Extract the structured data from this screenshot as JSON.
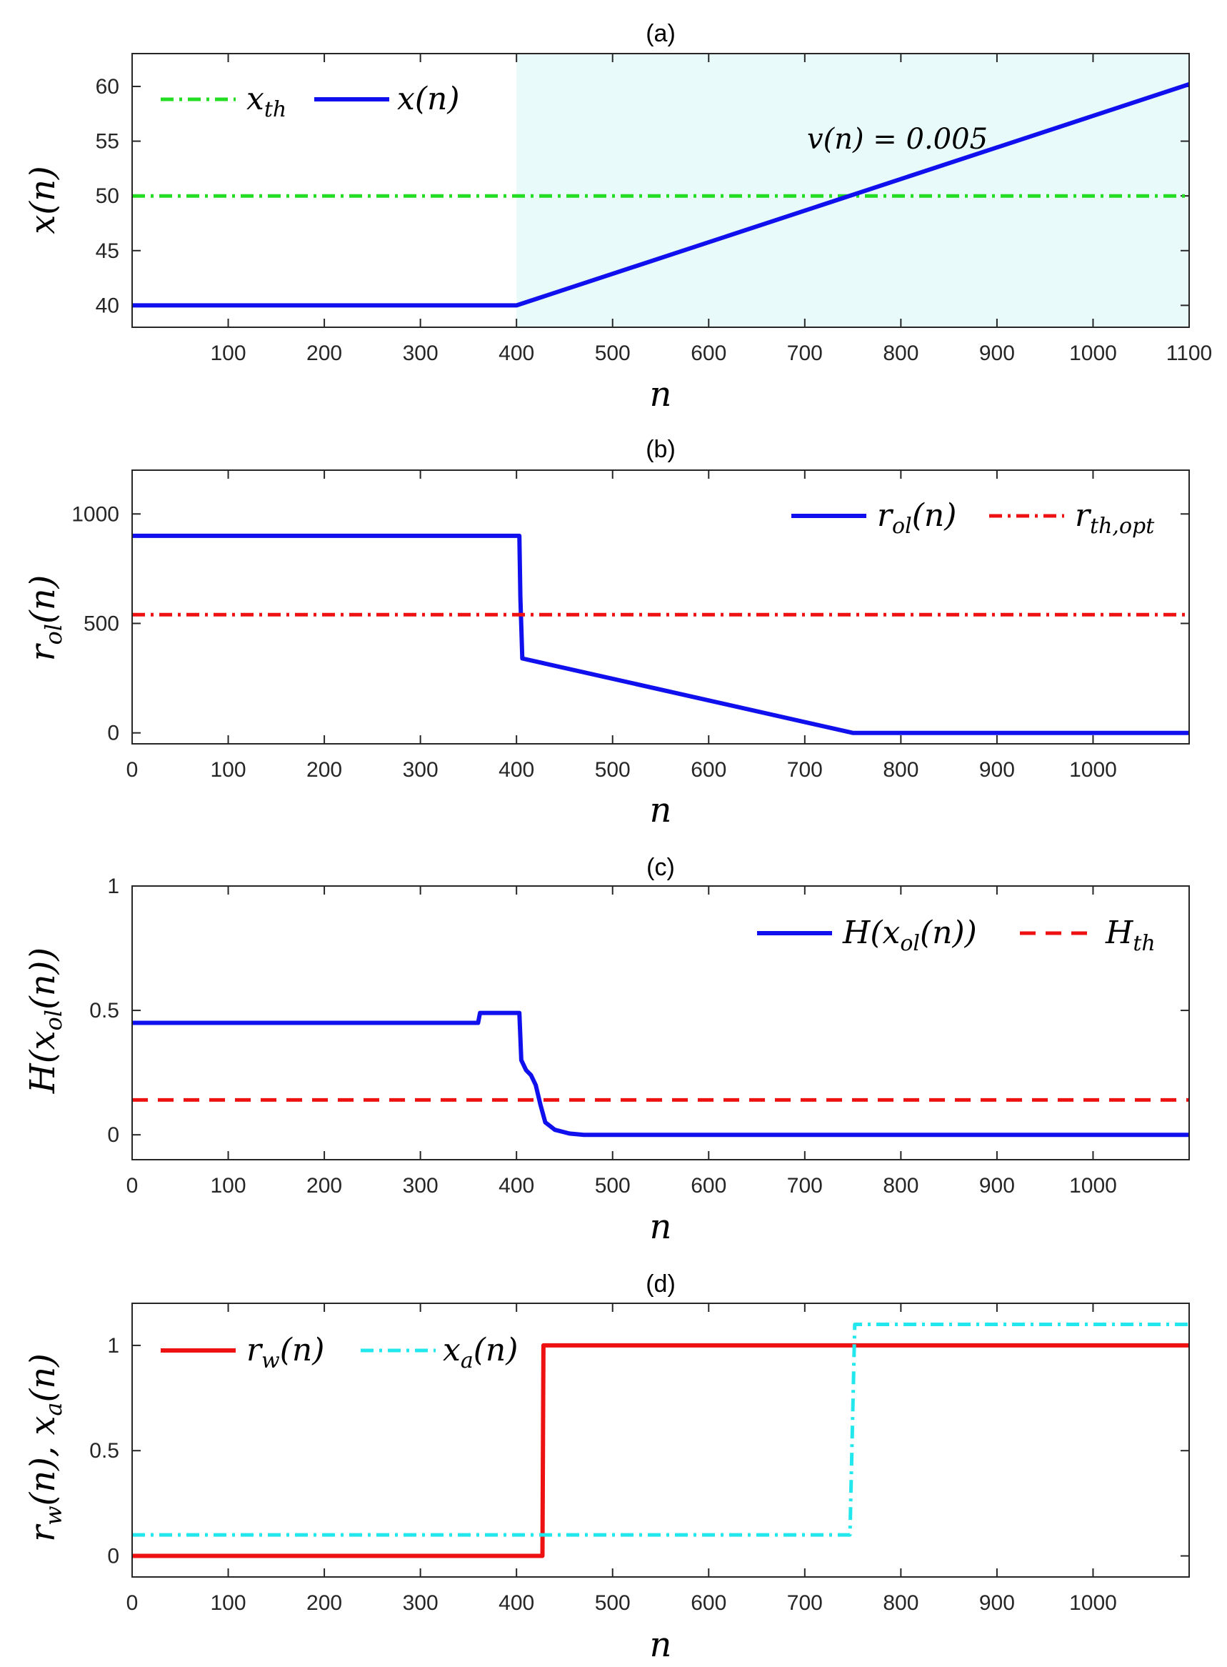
{
  "chart_data": [
    {
      "type": "line",
      "title": "(a)",
      "xlabel": "n",
      "ylabel": "x(n)",
      "xlim": [
        0,
        1100
      ],
      "ylim": [
        38,
        63
      ],
      "xticks": [
        100,
        200,
        300,
        400,
        500,
        600,
        700,
        800,
        900,
        1000,
        1100
      ],
      "yticks": [
        40,
        45,
        50,
        55,
        60
      ],
      "shaded_region": {
        "x_from": 400,
        "x_to": 1100,
        "color": "#e8fafa"
      },
      "annotation": {
        "text": "v(n) = 0.005",
        "x": 700,
        "y": 55.2
      },
      "legend_position": "top-left",
      "series": [
        {
          "name": "x_th",
          "color": "#22dd22",
          "style": "dashdot",
          "x": [
            0,
            1100
          ],
          "y": [
            50,
            50
          ]
        },
        {
          "name": "x(n)",
          "color": "#1010ee",
          "style": "solid",
          "x": [
            0,
            400,
            1100
          ],
          "y": [
            40,
            40,
            60.2
          ]
        }
      ]
    },
    {
      "type": "line",
      "title": "(b)",
      "xlabel": "n",
      "ylabel": "r_ol(n)",
      "xlim": [
        0,
        1100
      ],
      "ylim": [
        -50,
        1200
      ],
      "xticks": [
        0,
        100,
        200,
        300,
        400,
        500,
        600,
        700,
        800,
        900,
        1000
      ],
      "yticks": [
        0,
        500,
        1000
      ],
      "legend_position": "top-right",
      "series": [
        {
          "name": "r_ol(n)",
          "color": "#1010ee",
          "style": "solid",
          "x": [
            0,
            403,
            404,
            406,
            750,
            1100
          ],
          "y": [
            900,
            900,
            620,
            340,
            0,
            0
          ]
        },
        {
          "name": "r_th,opt",
          "color": "#ee1111",
          "style": "dashdot",
          "x": [
            0,
            1100
          ],
          "y": [
            540,
            540
          ]
        }
      ]
    },
    {
      "type": "line",
      "title": "(c)",
      "xlabel": "n",
      "ylabel": "H(x_ol(n))",
      "xlim": [
        0,
        1100
      ],
      "ylim": [
        -0.1,
        1.0
      ],
      "xticks": [
        0,
        100,
        200,
        300,
        400,
        500,
        600,
        700,
        800,
        900,
        1000
      ],
      "yticks": [
        0,
        0.5,
        1
      ],
      "legend_position": "top-right",
      "series": [
        {
          "name": "H(x_ol(n))",
          "color": "#1010ee",
          "style": "solid",
          "x": [
            0,
            360,
            362,
            403,
            405,
            410,
            415,
            420,
            425,
            430,
            440,
            455,
            470,
            1100
          ],
          "y": [
            0.45,
            0.45,
            0.49,
            0.49,
            0.3,
            0.26,
            0.24,
            0.2,
            0.12,
            0.05,
            0.02,
            0.005,
            0,
            0
          ]
        },
        {
          "name": "H_th",
          "color": "#ee1111",
          "style": "dashed",
          "x": [
            0,
            1100
          ],
          "y": [
            0.14,
            0.14
          ]
        }
      ]
    },
    {
      "type": "line",
      "title": "(d)",
      "xlabel": "n",
      "ylabel": "r_w(n), x_a(n)",
      "xlim": [
        0,
        1100
      ],
      "ylim": [
        -0.1,
        1.2
      ],
      "xticks": [
        0,
        100,
        200,
        300,
        400,
        500,
        600,
        700,
        800,
        900,
        1000
      ],
      "yticks": [
        0,
        0.5,
        1
      ],
      "legend_position": "top-left",
      "series": [
        {
          "name": "r_w(n)",
          "color": "#ee1111",
          "style": "solid",
          "x": [
            0,
            427,
            428,
            1100
          ],
          "y": [
            0,
            0,
            1,
            1
          ]
        },
        {
          "name": "x_a(n)",
          "color": "#22e8ee",
          "style": "dashdot",
          "x": [
            0,
            747,
            752,
            1100
          ],
          "y": [
            0.1,
            0.1,
            1.1,
            1.1
          ]
        }
      ]
    }
  ]
}
